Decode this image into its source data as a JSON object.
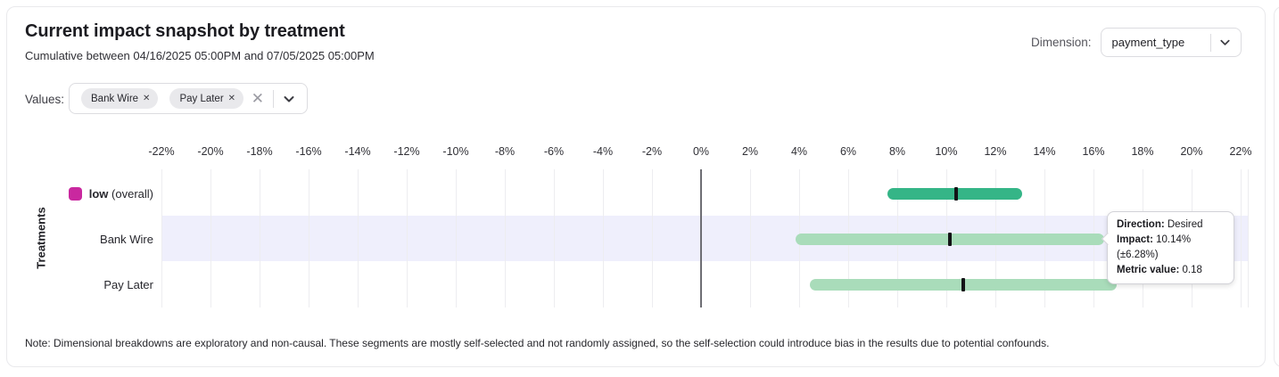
{
  "header": {
    "title": "Current impact snapshot by treatment",
    "subtitle": "Cumulative between 04/16/2025 05:00PM and 07/05/2025 05:00PM",
    "dimension_label": "Dimension:",
    "dimension_value": "payment_type"
  },
  "filters": {
    "values_label": "Values:",
    "chips": [
      {
        "label": "Bank Wire"
      },
      {
        "label": "Pay Later"
      }
    ]
  },
  "icons": {
    "chip_remove": "✕",
    "clear_all": "✕",
    "dropdown_chevron": "chevron-down"
  },
  "chart_data": {
    "type": "bar",
    "variant": "horizontal-interval",
    "title": "Current impact snapshot by treatment",
    "ylabel": "Treatments",
    "xlim": [
      -22,
      22
    ],
    "x_ticks": [
      -22,
      -20,
      -18,
      -16,
      -14,
      -12,
      -10,
      -8,
      -6,
      -4,
      -2,
      0,
      2,
      4,
      6,
      8,
      10,
      12,
      14,
      16,
      18,
      20,
      22
    ],
    "x_tick_suffix": "%",
    "grid": true,
    "zero_line": true,
    "legend_position": "left-of-rows",
    "series": [
      {
        "label_bold": "low",
        "label": "(overall)",
        "low": 7.6,
        "high": 13.1,
        "center": 10.4,
        "bar_color": "#35b587",
        "swatch_color": "#c9289f",
        "highlighted": false
      },
      {
        "label": "Bank Wire",
        "low": 3.86,
        "high": 16.42,
        "center": 10.14,
        "bar_color": "#a9dcba",
        "highlighted": true
      },
      {
        "label": "Pay Later",
        "low": 4.45,
        "high": 16.95,
        "center": 10.7,
        "bar_color": "#a9dcba",
        "highlighted": false
      }
    ],
    "highlight_color": "#efeffc",
    "colors": {
      "gridline": "#ededf0",
      "zero_line": "#6e6e74",
      "interval_tick": "#131316"
    }
  },
  "tooltip": {
    "rows": [
      {
        "label": "Direction:",
        "value": "Desired"
      },
      {
        "label": "Impact:",
        "value": "10.14% (±6.28%)"
      },
      {
        "label": "Metric value:",
        "value": "0.18"
      }
    ]
  },
  "note": "Note: Dimensional breakdowns are exploratory and non-causal. These segments are mostly self-selected and not randomly assigned, so the self-selection could introduce bias in the results due to potential confounds."
}
